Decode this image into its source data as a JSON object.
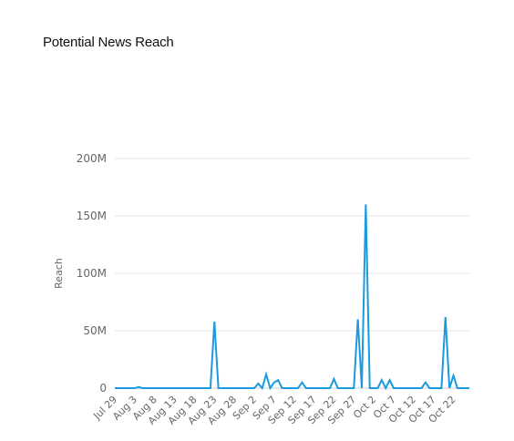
{
  "title": "Potential News Reach",
  "chart_data": {
    "type": "line",
    "title": "Potential News Reach",
    "xlabel": "",
    "ylabel": "Reach",
    "ylim": [
      0,
      200000000
    ],
    "yticks": [
      0,
      50000000,
      100000000,
      150000000,
      200000000
    ],
    "ytick_labels": [
      "0",
      "50M",
      "100M",
      "150M",
      "200M"
    ],
    "xtick_labels": [
      "Jul 29",
      "Aug 3",
      "Aug 8",
      "Aug 13",
      "Aug 18",
      "Aug 23",
      "Aug 28",
      "Sep 2",
      "Sep 7",
      "Sep 12",
      "Sep 17",
      "Sep 22",
      "Sep 27",
      "Oct 2",
      "Oct 7",
      "Oct 12",
      "Oct 17",
      "Oct 22"
    ],
    "grid": true,
    "legend": "none",
    "color": "#1a9be0",
    "x": [
      "Jul 29",
      "Jul 30",
      "Jul 31",
      "Aug 1",
      "Aug 2",
      "Aug 3",
      "Aug 4",
      "Aug 5",
      "Aug 6",
      "Aug 7",
      "Aug 8",
      "Aug 9",
      "Aug 10",
      "Aug 11",
      "Aug 12",
      "Aug 13",
      "Aug 14",
      "Aug 15",
      "Aug 16",
      "Aug 17",
      "Aug 18",
      "Aug 19",
      "Aug 20",
      "Aug 21",
      "Aug 22",
      "Aug 23",
      "Aug 24",
      "Aug 25",
      "Aug 26",
      "Aug 27",
      "Aug 28",
      "Aug 29",
      "Aug 30",
      "Aug 31",
      "Sep 1",
      "Sep 2",
      "Sep 3",
      "Sep 4",
      "Sep 5",
      "Sep 6",
      "Sep 7",
      "Sep 8",
      "Sep 9",
      "Sep 10",
      "Sep 11",
      "Sep 12",
      "Sep 13",
      "Sep 14",
      "Sep 15",
      "Sep 16",
      "Sep 17",
      "Sep 18",
      "Sep 19",
      "Sep 20",
      "Sep 21",
      "Sep 22",
      "Sep 23",
      "Sep 24",
      "Sep 25",
      "Sep 26",
      "Sep 27",
      "Sep 28",
      "Sep 29",
      "Sep 30",
      "Oct 1",
      "Oct 2",
      "Oct 3",
      "Oct 4",
      "Oct 5",
      "Oct 6",
      "Oct 7",
      "Oct 8",
      "Oct 9",
      "Oct 10",
      "Oct 11",
      "Oct 12",
      "Oct 13",
      "Oct 14",
      "Oct 15",
      "Oct 16",
      "Oct 17",
      "Oct 18",
      "Oct 19",
      "Oct 20",
      "Oct 21",
      "Oct 22",
      "Oct 23",
      "Oct 24",
      "Oct 25",
      "Oct 26"
    ],
    "series": [
      {
        "values": [
          0,
          0,
          0,
          0,
          0,
          0,
          1000000,
          0,
          0,
          0,
          0,
          0,
          0,
          0,
          0,
          0,
          0,
          0,
          0,
          0,
          0,
          0,
          0,
          0,
          0,
          58000000,
          0,
          0,
          0,
          0,
          0,
          0,
          0,
          0,
          0,
          0,
          4000000,
          0,
          12000000,
          0,
          5000000,
          7000000,
          0,
          0,
          0,
          0,
          0,
          5000000,
          0,
          0,
          0,
          0,
          0,
          0,
          0,
          8000000,
          0,
          0,
          0,
          0,
          0,
          60000000,
          0,
          160000000,
          0,
          0,
          0,
          7000000,
          0,
          7000000,
          0,
          0,
          0,
          0,
          0,
          0,
          0,
          0,
          5000000,
          0,
          0,
          0,
          0,
          62000000,
          0,
          11000000,
          0,
          0,
          0,
          0
        ]
      }
    ]
  }
}
